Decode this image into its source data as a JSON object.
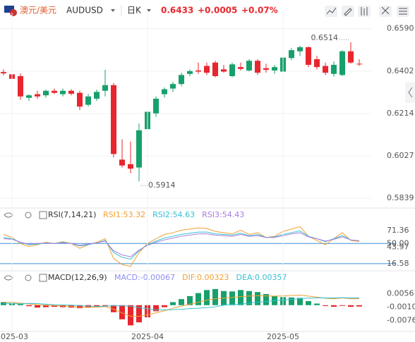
{
  "header": {
    "pair_cn": "澳元/美元",
    "symbol": "AUDUSD",
    "period": "日K",
    "price": "0.6433",
    "change": "+0.0005",
    "change_pct": "+0.07%"
  },
  "chart_data": [
    {
      "type": "candlestick",
      "up_color": "#17a06b",
      "down_color": "#e8262d",
      "open": [
        0.6398,
        0.6388,
        0.638,
        0.6284,
        0.63,
        0.6295,
        0.6315,
        0.63,
        0.6315,
        0.6306,
        0.6253,
        0.628,
        0.6315,
        0.634,
        0.601,
        0.599,
        0.5975,
        0.6145,
        0.6215,
        0.63,
        0.6325,
        0.6345,
        0.639,
        0.6405,
        0.6425,
        0.644,
        0.641,
        0.638,
        0.642,
        0.6405,
        0.6448,
        0.6415,
        0.6405,
        0.64,
        0.646,
        0.649,
        0.6508,
        0.6455,
        0.6425,
        0.639,
        0.6385,
        0.649,
        0.6435
      ],
      "high": [
        0.641,
        0.6395,
        0.6392,
        0.63,
        0.6315,
        0.632,
        0.6325,
        0.6325,
        0.6322,
        0.6315,
        0.63,
        0.632,
        0.6408,
        0.635,
        0.61,
        0.609,
        0.617,
        0.6225,
        0.629,
        0.633,
        0.6355,
        0.6395,
        0.641,
        0.644,
        0.644,
        0.6448,
        0.643,
        0.644,
        0.644,
        0.6455,
        0.6455,
        0.6435,
        0.643,
        0.647,
        0.6505,
        0.6514,
        0.6512,
        0.647,
        0.644,
        0.6445,
        0.6495,
        0.653,
        0.6455
      ],
      "low": [
        0.6383,
        0.636,
        0.6275,
        0.627,
        0.628,
        0.6285,
        0.63,
        0.629,
        0.6295,
        0.623,
        0.6245,
        0.627,
        0.629,
        0.602,
        0.5975,
        0.595,
        0.5914,
        0.612,
        0.62,
        0.6285,
        0.631,
        0.6335,
        0.638,
        0.639,
        0.6385,
        0.6375,
        0.6395,
        0.6375,
        0.6405,
        0.64,
        0.6385,
        0.6395,
        0.639,
        0.6395,
        0.645,
        0.647,
        0.642,
        0.641,
        0.6385,
        0.6378,
        0.638,
        0.6435,
        0.6425
      ],
      "close": [
        0.6392,
        0.6368,
        0.629,
        0.6295,
        0.629,
        0.6315,
        0.6306,
        0.6315,
        0.6302,
        0.6245,
        0.629,
        0.631,
        0.634,
        0.6035,
        0.5984,
        0.597,
        0.614,
        0.6222,
        0.628,
        0.6322,
        0.6345,
        0.6385,
        0.6402,
        0.64,
        0.6395,
        0.638,
        0.64,
        0.6432,
        0.6412,
        0.6448,
        0.6395,
        0.6408,
        0.642,
        0.6462,
        0.6495,
        0.6508,
        0.643,
        0.642,
        0.6395,
        0.643,
        0.649,
        0.644,
        0.6433
      ],
      "ylim": [
        0.5805,
        0.6661
      ],
      "yticks": [
        {
          "value": 0.659,
          "label": "0.6590"
        },
        0.6402,
        0.6214,
        0.6027,
        0.5839
      ],
      "grid": true,
      "high_label": "0.6514",
      "low_label": "0.5914"
    },
    {
      "type": "line",
      "title": "RSI(7,14,21)",
      "ylim": [
        7,
        82
      ],
      "yticks": [
        71.36,
        {
          "value": 50,
          "label": "50.00"
        },
        43.97,
        16.58
      ],
      "reference_lines": [
        {
          "value": 50,
          "color": "#3d8fd6"
        },
        {
          "value": 16.58,
          "color": "#3d8fd6"
        }
      ],
      "series": [
        {
          "name": "RSI1:53.32",
          "color": "#f0a030",
          "values": [
            65,
            60,
            50,
            45,
            48,
            52,
            50,
            53,
            50,
            42,
            48,
            52,
            58,
            25,
            15,
            12,
            35,
            50,
            58,
            65,
            68,
            72,
            74,
            76,
            75,
            70,
            68,
            66,
            72,
            65,
            68,
            60,
            62,
            70,
            74,
            78,
            62,
            55,
            48,
            58,
            68,
            55,
            53.32
          ]
        },
        {
          "name": "RSI2:54.63",
          "color": "#35bfd2",
          "values": [
            60,
            58,
            52,
            48,
            49,
            51,
            50,
            52,
            50,
            46,
            48,
            51,
            55,
            35,
            27,
            24,
            38,
            48,
            54,
            59,
            62,
            65,
            67,
            69,
            69,
            66,
            65,
            64,
            67,
            63,
            65,
            60,
            61,
            65,
            68,
            71,
            62,
            58,
            53,
            58,
            63,
            56,
            54.63
          ]
        },
        {
          "name": "RSI3:54.43",
          "color": "#a97ddc",
          "values": [
            58,
            57,
            52,
            49,
            50,
            51,
            50,
            51,
            50,
            47,
            49,
            51,
            54,
            38,
            31,
            28,
            39,
            47,
            52,
            56,
            59,
            62,
            64,
            66,
            66,
            64,
            63,
            62,
            65,
            62,
            63,
            60,
            60,
            63,
            66,
            68,
            61,
            58,
            54,
            57,
            61,
            56,
            54.43
          ]
        }
      ]
    },
    {
      "type": "macd",
      "title": "MACD(12,26,9)",
      "ylim": [
        -0.013,
        0.0097
      ],
      "yticks": [
        0.00561,
        {
          "value": -0.001,
          "label": "-0.00100"
        },
        -0.00761
      ],
      "categories": [
        null,
        "2025-03",
        null,
        null,
        null,
        null,
        null,
        null,
        null,
        null,
        null,
        null,
        null,
        null,
        null,
        null,
        null,
        "2025-04",
        null,
        null,
        null,
        null,
        null,
        null,
        null,
        null,
        null,
        null,
        null,
        null,
        null,
        null,
        null,
        "2025-05",
        null,
        null,
        null,
        null,
        null,
        null,
        null,
        null,
        null
      ],
      "histogram": {
        "name": "MACD:-0.00067",
        "up_color": "#17a06b",
        "down_color": "#e8262d",
        "values": [
          0.0015,
          0.001,
          0.0008,
          -0.0005,
          -0.0012,
          -0.001,
          -0.0008,
          -0.001,
          -0.0012,
          -0.0015,
          -0.0012,
          -0.0008,
          -0.0004,
          -0.0035,
          -0.007,
          -0.01,
          -0.0085,
          -0.006,
          -0.003,
          -0.001,
          0.0015,
          0.003,
          0.0045,
          0.006,
          0.0075,
          0.008,
          0.007,
          0.0068,
          0.0075,
          0.007,
          0.0065,
          0.0055,
          0.0045,
          0.004,
          0.0038,
          0.0036,
          0.002,
          0.0008,
          -0.0004,
          -0.0008,
          -0.0002,
          -0.0008,
          -0.00067
        ]
      },
      "series": [
        {
          "name": "DIF:0.00323",
          "color": "#f0a030",
          "values": [
            0.0015,
            0.0014,
            0.001,
            0.0006,
            0.0002,
            0.0,
            -0.0002,
            -0.0004,
            -0.0006,
            -0.001,
            -0.0011,
            -0.001,
            -0.0007,
            -0.002,
            -0.0038,
            -0.0055,
            -0.0055,
            -0.0048,
            -0.0038,
            -0.0028,
            -0.0015,
            -0.0005,
            0.0005,
            0.0015,
            0.0025,
            0.0032,
            0.0035,
            0.0038,
            0.0043,
            0.0045,
            0.0047,
            0.0046,
            0.0045,
            0.0046,
            0.0048,
            0.005,
            0.0045,
            0.004,
            0.0034,
            0.0032,
            0.0036,
            0.0032,
            0.00323
          ]
        },
        {
          "name": "DEA:0.00357",
          "color": "#35bfd2",
          "values": [
            0.0008,
            0.0009,
            0.0006,
            0.0009,
            0.0008,
            0.0005,
            0.0002,
            0.0001,
            0.0,
            -0.0002,
            -0.0005,
            -0.0006,
            -0.0005,
            -0.0003,
            -0.0003,
            -0.0005,
            -0.0012,
            -0.0018,
            -0.0023,
            -0.0023,
            -0.0022,
            -0.002,
            -0.0017,
            -0.0015,
            -0.0012,
            -0.0008,
            0.0,
            0.0004,
            0.0005,
            0.001,
            0.0015,
            0.0018,
            0.0023,
            0.0026,
            0.0029,
            0.0032,
            0.0035,
            0.0036,
            0.0036,
            0.0036,
            0.0037,
            0.0036,
            0.00357
          ]
        }
      ]
    }
  ]
}
